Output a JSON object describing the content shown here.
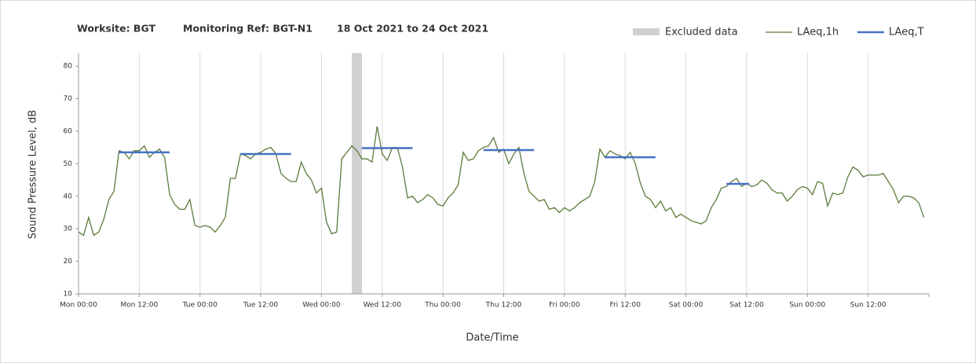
{
  "chart_data": {
    "type": "line",
    "title_parts": [
      "Worksite: BGT",
      "Monitoring Ref: BGT-N1",
      "18 Oct 2021 to 24 Oct 2021"
    ],
    "xlabel": "Date/Time",
    "ylabel": "Sound Pressure Level, dB",
    "xlim": [
      0,
      168
    ],
    "ylim": [
      10,
      84
    ],
    "xticks": [
      {
        "value": 0,
        "label": "Mon 00:00"
      },
      {
        "value": 12,
        "label": "Mon 12:00"
      },
      {
        "value": 24,
        "label": "Tue 00:00"
      },
      {
        "value": 36,
        "label": "Tue 12:00"
      },
      {
        "value": 48,
        "label": "Wed 00:00"
      },
      {
        "value": 60,
        "label": "Wed 12:00"
      },
      {
        "value": 72,
        "label": "Thu 00:00"
      },
      {
        "value": 84,
        "label": "Thu 12:00"
      },
      {
        "value": 96,
        "label": "Fri 00:00"
      },
      {
        "value": 108,
        "label": "Fri 12:00"
      },
      {
        "value": 120,
        "label": "Sat 00:00"
      },
      {
        "value": 132,
        "label": "Sat 12:00"
      },
      {
        "value": 144,
        "label": "Sun 00:00"
      },
      {
        "value": 156,
        "label": "Sun 12:00"
      }
    ],
    "yticks": [
      10,
      20,
      30,
      40,
      50,
      60,
      70,
      80
    ],
    "grid": "x",
    "excluded": {
      "name": "Excluded data",
      "color": "#d0d0d0",
      "ranges": [
        {
          "x0": 54,
          "x1": 56
        }
      ]
    },
    "series": [
      {
        "name": "LAeq,1h",
        "color": "#5b7b3b",
        "x": [
          0,
          1,
          2,
          3,
          4,
          5,
          6,
          7,
          8,
          9,
          10,
          11,
          12,
          13,
          14,
          15,
          16,
          17,
          18,
          19,
          20,
          21,
          22,
          23,
          24,
          25,
          26,
          27,
          28,
          29,
          30,
          31,
          32,
          33,
          34,
          35,
          36,
          37,
          38,
          39,
          40,
          41,
          42,
          43,
          44,
          45,
          46,
          47,
          48,
          49,
          50,
          51,
          52,
          53,
          54,
          55,
          56,
          57,
          58,
          59,
          60,
          61,
          62,
          63,
          64,
          65,
          66,
          67,
          68,
          69,
          70,
          71,
          72,
          73,
          74,
          75,
          76,
          77,
          78,
          79,
          80,
          81,
          82,
          83,
          84,
          85,
          86,
          87,
          88,
          89,
          90,
          91,
          92,
          93,
          94,
          95,
          96,
          97,
          98,
          99,
          100,
          101,
          102,
          103,
          104,
          105,
          106,
          107,
          108,
          109,
          110,
          111,
          112,
          113,
          114,
          115,
          116,
          117,
          118,
          119,
          120,
          121,
          122,
          123,
          124,
          125,
          126,
          127,
          128,
          129,
          130,
          131,
          132,
          133,
          134,
          135,
          136,
          137,
          138,
          139,
          140,
          141,
          142,
          143,
          144,
          145,
          146,
          147,
          148,
          149,
          150,
          151,
          152,
          153,
          154,
          155,
          156,
          157,
          158,
          159,
          160,
          161,
          162,
          163,
          164,
          165,
          166,
          167
        ],
        "values": [
          29,
          28,
          33.5,
          28,
          29,
          33,
          39,
          41.5,
          54,
          53.5,
          51.5,
          54,
          54,
          55.5,
          52,
          53.5,
          54.5,
          52,
          40.5,
          37.5,
          36,
          36,
          39,
          31,
          30.5,
          31,
          30.5,
          29,
          31,
          33.5,
          45.5,
          45.5,
          53,
          52.5,
          51.5,
          53,
          53.5,
          54.5,
          55,
          53,
          47,
          45.5,
          44.5,
          44.5,
          50.5,
          47,
          45,
          41,
          42.5,
          32,
          28.5,
          29,
          51.5,
          53.5,
          55.5,
          54,
          51.5,
          51.5,
          50.5,
          61.5,
          53,
          51,
          55,
          55,
          49,
          39.5,
          40,
          38,
          39,
          40.5,
          39.5,
          37.5,
          37,
          39.5,
          41,
          43.5,
          53.5,
          51,
          51.5,
          54,
          55,
          55.5,
          58,
          53.5,
          54.5,
          50,
          53,
          55,
          47,
          41.5,
          40,
          38.5,
          39,
          36,
          36.5,
          35,
          36.5,
          35.5,
          36.5,
          38,
          39,
          40,
          44.5,
          54.5,
          52,
          54,
          53,
          52.5,
          51.5,
          53.5,
          50,
          44,
          40,
          39,
          36.5,
          38.5,
          35.5,
          36.5,
          33.5,
          34.5,
          33.5,
          32.5,
          32,
          31.5,
          32.5,
          36.5,
          39,
          42.5,
          43,
          44.5,
          45.5,
          43,
          44,
          43,
          43.5,
          45,
          44,
          42,
          41,
          41,
          38.5,
          40,
          42,
          43,
          42.5,
          40.5,
          44.5,
          44,
          37,
          41,
          40.5,
          41,
          46,
          49,
          48,
          46,
          46.5,
          46.5,
          46.5,
          47,
          44.5,
          42,
          38,
          40,
          40,
          39.5,
          38,
          33.5
        ]
      },
      {
        "name": "LAeq,T",
        "color": "#4472c4",
        "segments": [
          {
            "x0": 8,
            "x1": 18,
            "value": 53.5
          },
          {
            "x0": 32,
            "x1": 42,
            "value": 53
          },
          {
            "x0": 56,
            "x1": 66,
            "value": 54.8
          },
          {
            "x0": 80,
            "x1": 90,
            "value": 54.2
          },
          {
            "x0": 104,
            "x1": 114,
            "value": 52
          },
          {
            "x0": 128,
            "x1": 132.5,
            "value": 43.8
          }
        ]
      }
    ]
  }
}
